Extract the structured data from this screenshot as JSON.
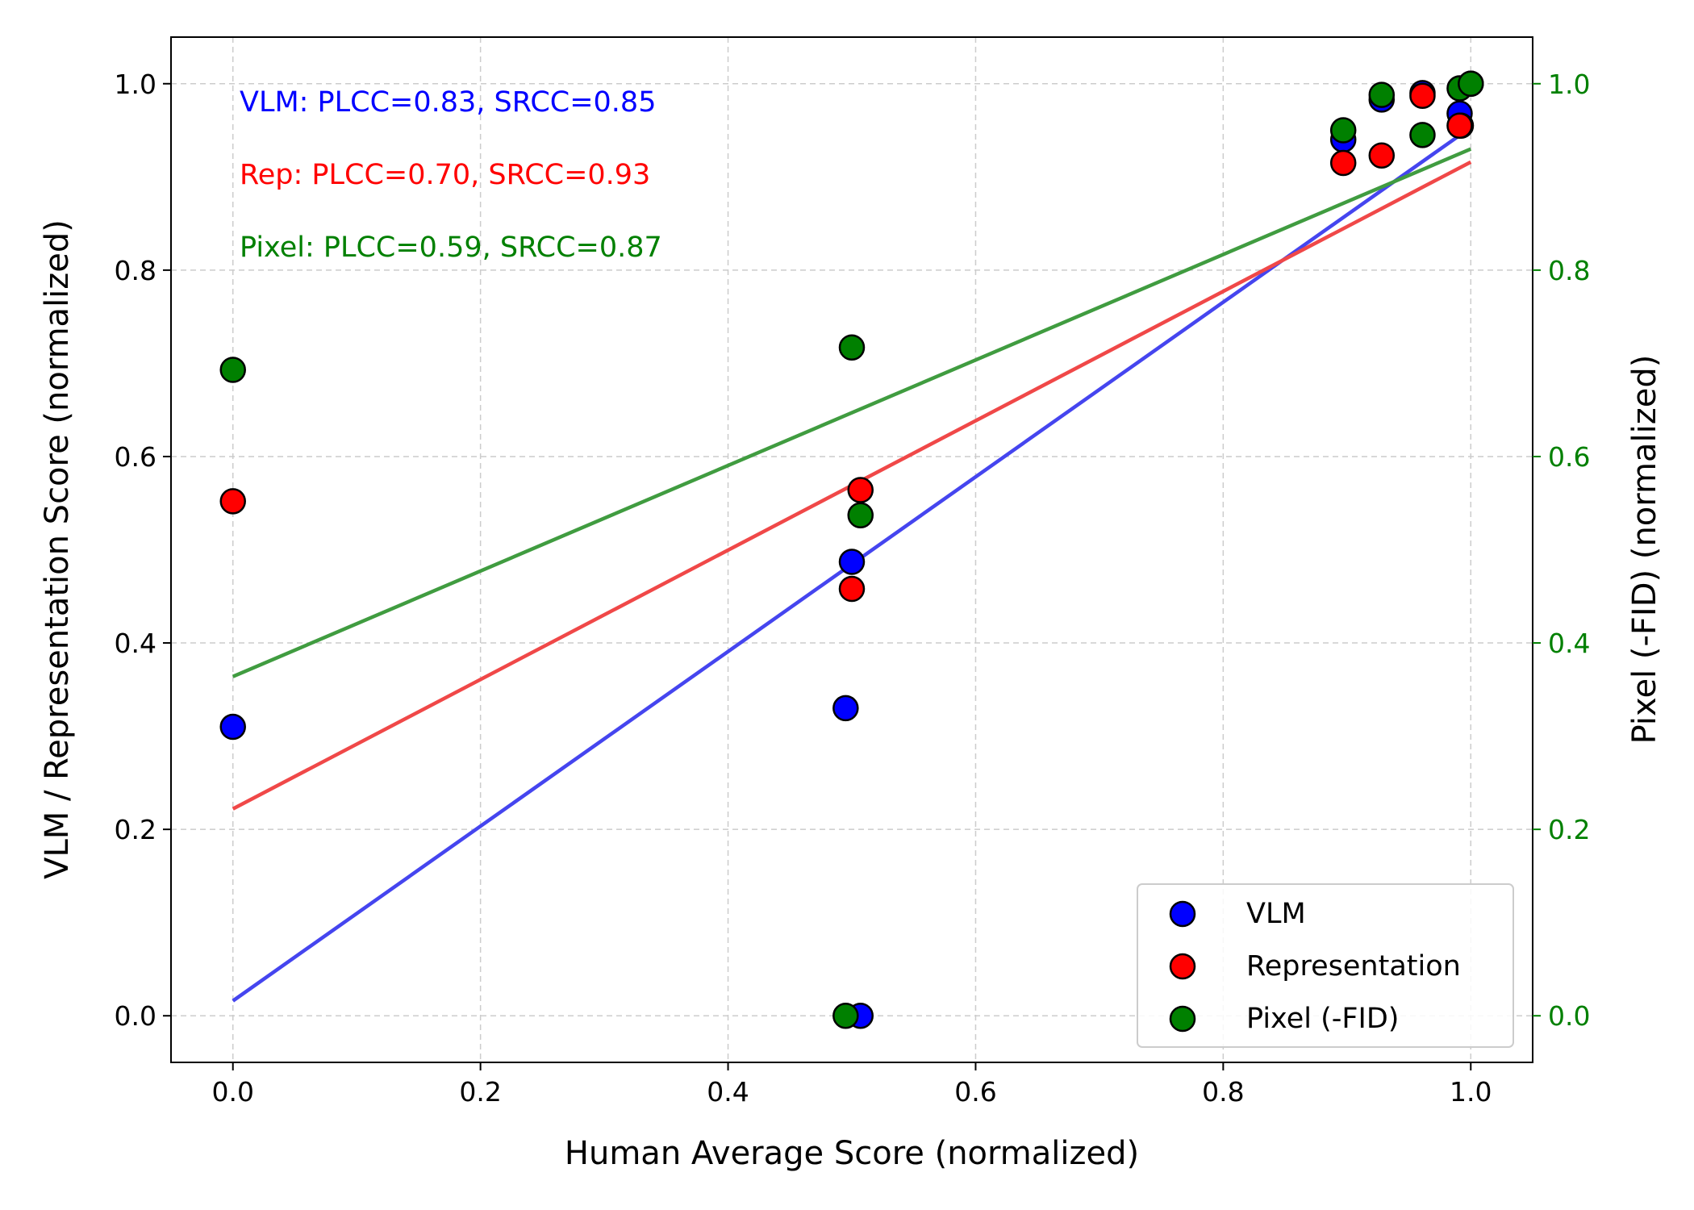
{
  "chart_data": {
    "type": "scatter",
    "xlabel": "Human Average Score (normalized)",
    "ylabel": "VLM / Representation Score (normalized)",
    "ylabel_right": "Pixel (-FID) (normalized)",
    "xlim": [
      -0.05,
      1.05
    ],
    "ylim": [
      -0.05,
      1.05
    ],
    "ylim_right": [
      -0.05,
      1.05
    ],
    "grid": true,
    "legend_position": "lower-right",
    "x_ticks": [
      {
        "value": 0.0,
        "label": "0.0"
      },
      {
        "value": 0.2,
        "label": "0.2"
      },
      {
        "value": 0.4,
        "label": "0.4"
      },
      {
        "value": 0.6,
        "label": "0.6"
      },
      {
        "value": 0.8,
        "label": "0.8"
      },
      {
        "value": 1.0,
        "label": "1.0"
      }
    ],
    "y_ticks": [
      {
        "value": 0.0,
        "label": "0.0"
      },
      {
        "value": 0.2,
        "label": "0.2"
      },
      {
        "value": 0.4,
        "label": "0.4"
      },
      {
        "value": 0.6,
        "label": "0.6"
      },
      {
        "value": 0.8,
        "label": "0.8"
      },
      {
        "value": 1.0,
        "label": "1.0"
      }
    ],
    "y_ticks_right": [
      {
        "value": 0.0,
        "label": "0.0"
      },
      {
        "value": 0.2,
        "label": "0.2"
      },
      {
        "value": 0.4,
        "label": "0.4"
      },
      {
        "value": 0.6,
        "label": "0.6"
      },
      {
        "value": 0.8,
        "label": "0.8"
      },
      {
        "value": 1.0,
        "label": "1.0"
      }
    ],
    "right_axis_color": "#008000",
    "annotations": [
      {
        "text": "VLM: PLCC=0.83, SRCC=0.85",
        "color": "#0000ff"
      },
      {
        "text": "Rep: PLCC=0.70, SRCC=0.93",
        "color": "#ff0000"
      },
      {
        "text": "Pixel: PLCC=0.59, SRCC=0.87",
        "color": "#008000"
      }
    ],
    "series": [
      {
        "name": "VLM",
        "axis": "left",
        "color": "#0000ff",
        "x": [
          0.0,
          0.495,
          0.5,
          0.507,
          0.897,
          0.928,
          0.961,
          0.991,
          0.992,
          1.0
        ],
        "y": [
          0.31,
          0.33,
          0.487,
          0.0,
          0.94,
          0.983,
          0.99,
          0.968,
          0.955,
          1.0
        ],
        "fit": {
          "x0": 0.0,
          "y0": 0.016,
          "x1": 1.0,
          "y1": 0.953,
          "color": "#4545ef"
        }
      },
      {
        "name": "Representation",
        "axis": "left",
        "color": "#ff0000",
        "x": [
          0.0,
          0.5,
          0.507,
          0.897,
          0.928,
          0.961,
          0.991
        ],
        "y": [
          0.552,
          0.458,
          0.564,
          0.915,
          0.923,
          0.987,
          0.955
        ],
        "fit": {
          "x0": 0.0,
          "y0": 0.222,
          "x1": 1.0,
          "y1": 0.916,
          "color": "#f04848"
        }
      },
      {
        "name": "Pixel (-FID)",
        "axis": "right",
        "color": "#008000",
        "x": [
          0.0,
          0.5,
          0.507,
          0.495,
          0.897,
          0.928,
          0.961,
          0.991,
          1.0
        ],
        "y": [
          0.693,
          0.717,
          0.537,
          0.0,
          0.95,
          0.988,
          0.945,
          0.995,
          1.0
        ],
        "fit": {
          "x0": 0.0,
          "y0": 0.364,
          "x1": 1.0,
          "y1": 0.93,
          "color": "#409c40"
        }
      }
    ]
  }
}
